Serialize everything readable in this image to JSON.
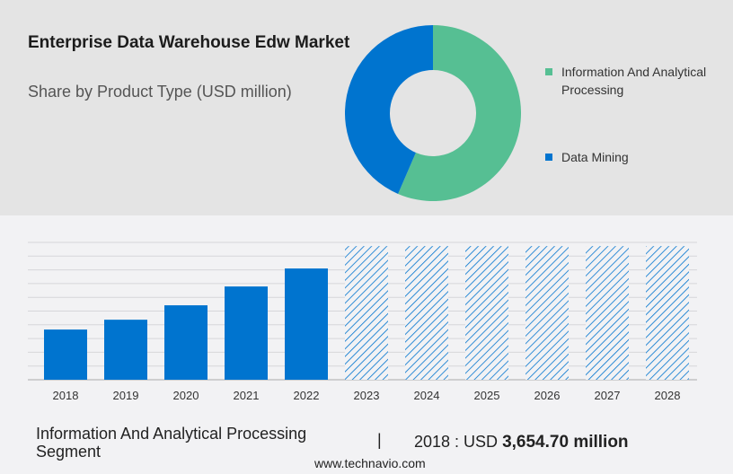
{
  "title": "Enterprise Data Warehouse Edw Market",
  "subtitle": "Share by Product Type (USD million)",
  "footer": {
    "segment": "Information And Analytical Processing Segment",
    "separator": "|",
    "year_label": "2018 : USD",
    "value": "3,654.70 million",
    "site": "www.technavio.com"
  },
  "colors": {
    "green": "#56bf93",
    "blue": "#0074cf",
    "background_top": "#e4e4e4",
    "background_bottom": "#f2f2f4"
  },
  "chart_data": [
    {
      "type": "pie",
      "donut": true,
      "slices": [
        {
          "name": "Information And Analytical Processing",
          "value": 56.5,
          "color": "#56bf93"
        },
        {
          "name": "Data Mining",
          "value": 43.5,
          "color": "#0074cf"
        }
      ],
      "legend": "right"
    },
    {
      "type": "bar",
      "categories": [
        "2018",
        "2019",
        "2020",
        "2021",
        "2022",
        "2023",
        "2024",
        "2025",
        "2026",
        "2027",
        "2028"
      ],
      "values": [
        3654.7,
        4370,
        5420,
        6790,
        8100,
        9730,
        9730,
        9730,
        9730,
        9730,
        9730
      ],
      "forecast_from": "2023",
      "ylim": [
        0,
        10000
      ],
      "grid": true,
      "ytick_labels": false,
      "color": "#0074cf"
    }
  ]
}
